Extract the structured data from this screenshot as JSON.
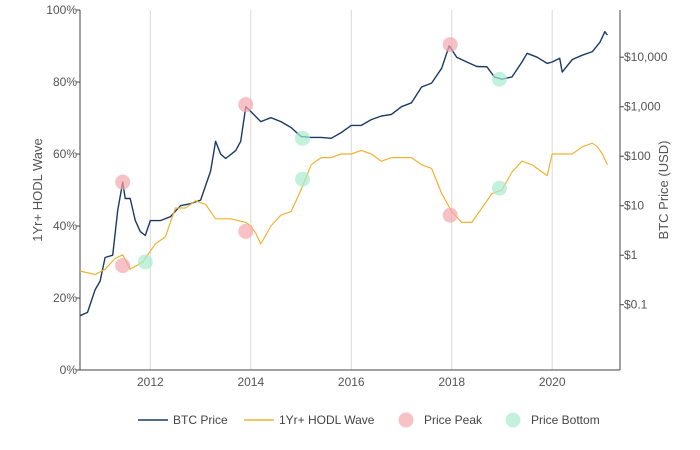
{
  "chart_data": {
    "type": "line",
    "x_axis": {
      "range": [
        2010.6,
        2021.35
      ],
      "ticks": [
        2012,
        2014,
        2016,
        2018,
        2020
      ],
      "grid": true
    },
    "y_left": {
      "label": "1Yr+ HODL Wave",
      "range": [
        0,
        100
      ],
      "ticks": [
        0,
        20,
        40,
        60,
        80,
        100
      ],
      "tick_labels": [
        "0%",
        "20%",
        "40%",
        "60%",
        "80%",
        "100%"
      ]
    },
    "y_right": {
      "label": "BTC Price (USD)",
      "scale": "log",
      "range": [
        0.0048,
        90000
      ],
      "ticks": [
        0.1,
        1,
        10,
        100,
        1000,
        10000
      ],
      "tick_labels": [
        "$0.1",
        "$1",
        "$10",
        "$100",
        "$1,000",
        "$10,000"
      ]
    },
    "series": [
      {
        "name": "BTC Price",
        "axis": "right",
        "color": "#1a3a66",
        "points": [
          [
            2010.6,
            0.06
          ],
          [
            2010.75,
            0.07
          ],
          [
            2010.9,
            0.2
          ],
          [
            2011.0,
            0.3
          ],
          [
            2011.1,
            0.9
          ],
          [
            2011.25,
            1.0
          ],
          [
            2011.35,
            8
          ],
          [
            2011.45,
            30
          ],
          [
            2011.5,
            14
          ],
          [
            2011.6,
            14
          ],
          [
            2011.7,
            5
          ],
          [
            2011.8,
            3
          ],
          [
            2011.9,
            2.5
          ],
          [
            2012.0,
            5
          ],
          [
            2012.2,
            5
          ],
          [
            2012.4,
            6
          ],
          [
            2012.6,
            10
          ],
          [
            2012.8,
            11
          ],
          [
            2013.0,
            13
          ],
          [
            2013.2,
            50
          ],
          [
            2013.3,
            200
          ],
          [
            2013.4,
            110
          ],
          [
            2013.5,
            90
          ],
          [
            2013.7,
            130
          ],
          [
            2013.8,
            200
          ],
          [
            2013.9,
            1000
          ],
          [
            2014.0,
            800
          ],
          [
            2014.2,
            500
          ],
          [
            2014.4,
            600
          ],
          [
            2014.6,
            500
          ],
          [
            2014.8,
            380
          ],
          [
            2015.0,
            250
          ],
          [
            2015.2,
            240
          ],
          [
            2015.4,
            240
          ],
          [
            2015.6,
            230
          ],
          [
            2015.8,
            300
          ],
          [
            2016.0,
            420
          ],
          [
            2016.2,
            420
          ],
          [
            2016.4,
            550
          ],
          [
            2016.6,
            650
          ],
          [
            2016.8,
            700
          ],
          [
            2017.0,
            1000
          ],
          [
            2017.2,
            1200
          ],
          [
            2017.4,
            2500
          ],
          [
            2017.6,
            3000
          ],
          [
            2017.8,
            6000
          ],
          [
            2017.95,
            17000
          ],
          [
            2018.1,
            10000
          ],
          [
            2018.3,
            8000
          ],
          [
            2018.5,
            6500
          ],
          [
            2018.7,
            6400
          ],
          [
            2018.85,
            4000
          ],
          [
            2019.0,
            3600
          ],
          [
            2019.2,
            4000
          ],
          [
            2019.4,
            8000
          ],
          [
            2019.5,
            12000
          ],
          [
            2019.7,
            10000
          ],
          [
            2019.9,
            7500
          ],
          [
            2020.0,
            8000
          ],
          [
            2020.15,
            9500
          ],
          [
            2020.2,
            5000
          ],
          [
            2020.4,
            9000
          ],
          [
            2020.6,
            11000
          ],
          [
            2020.8,
            13000
          ],
          [
            2020.95,
            20000
          ],
          [
            2021.05,
            33000
          ],
          [
            2021.1,
            28000
          ]
        ]
      },
      {
        "name": "1Yr+ HODL Wave",
        "axis": "left",
        "color": "#f0b232",
        "points": [
          [
            2010.6,
            27.5
          ],
          [
            2010.9,
            26.5
          ],
          [
            2011.1,
            28
          ],
          [
            2011.3,
            31
          ],
          [
            2011.45,
            32
          ],
          [
            2011.6,
            28
          ],
          [
            2011.85,
            30
          ],
          [
            2012.1,
            35
          ],
          [
            2012.3,
            37
          ],
          [
            2012.5,
            45
          ],
          [
            2012.7,
            45
          ],
          [
            2012.9,
            47
          ],
          [
            2013.1,
            46
          ],
          [
            2013.3,
            42
          ],
          [
            2013.6,
            42
          ],
          [
            2013.9,
            41
          ],
          [
            2014.0,
            40
          ],
          [
            2014.1,
            38
          ],
          [
            2014.2,
            35
          ],
          [
            2014.4,
            40
          ],
          [
            2014.6,
            43
          ],
          [
            2014.8,
            44
          ],
          [
            2015.0,
            50
          ],
          [
            2015.2,
            57
          ],
          [
            2015.4,
            59
          ],
          [
            2015.6,
            59
          ],
          [
            2015.8,
            60
          ],
          [
            2016.0,
            60
          ],
          [
            2016.2,
            61
          ],
          [
            2016.4,
            60
          ],
          [
            2016.6,
            58
          ],
          [
            2016.8,
            59
          ],
          [
            2017.0,
            59
          ],
          [
            2017.2,
            59
          ],
          [
            2017.4,
            57
          ],
          [
            2017.6,
            56
          ],
          [
            2017.8,
            49
          ],
          [
            2018.0,
            44
          ],
          [
            2018.2,
            41
          ],
          [
            2018.4,
            41
          ],
          [
            2018.6,
            45
          ],
          [
            2018.8,
            49
          ],
          [
            2019.0,
            50
          ],
          [
            2019.2,
            55
          ],
          [
            2019.4,
            58
          ],
          [
            2019.6,
            57
          ],
          [
            2019.8,
            55
          ],
          [
            2019.9,
            54
          ],
          [
            2020.0,
            60
          ],
          [
            2020.2,
            60
          ],
          [
            2020.4,
            60
          ],
          [
            2020.6,
            62
          ],
          [
            2020.8,
            63
          ],
          [
            2020.9,
            62
          ],
          [
            2021.0,
            60
          ],
          [
            2021.1,
            57
          ]
        ]
      },
      {
        "name": "Price Peak",
        "type": "scatter",
        "color": "#f4a6ac",
        "points": [
          {
            "x": 2011.45,
            "axis": "right",
            "y": 30
          },
          {
            "x": 2011.45,
            "axis": "left",
            "y": 29
          },
          {
            "x": 2013.9,
            "axis": "right",
            "y": 1100
          },
          {
            "x": 2013.9,
            "axis": "left",
            "y": 38.5
          },
          {
            "x": 2017.97,
            "axis": "right",
            "y": 18000
          },
          {
            "x": 2017.97,
            "axis": "left",
            "y": 43
          }
        ]
      },
      {
        "name": "Price Bottom",
        "type": "scatter",
        "color": "#a8ecd0",
        "points": [
          {
            "x": 2011.9,
            "axis": "left",
            "y": 30
          },
          {
            "x": 2015.03,
            "axis": "right",
            "y": 230
          },
          {
            "x": 2015.03,
            "axis": "left",
            "y": 53
          },
          {
            "x": 2018.95,
            "axis": "right",
            "y": 3600
          },
          {
            "x": 2018.95,
            "axis": "left",
            "y": 50.5
          }
        ]
      }
    ],
    "legend": {
      "position": "bottom",
      "items": [
        {
          "label": "BTC Price",
          "kind": "line",
          "color": "#1a3a66"
        },
        {
          "label": "1Yr+ HODL Wave",
          "kind": "line",
          "color": "#f0b232"
        },
        {
          "label": "Price Peak",
          "kind": "marker",
          "color": "#f4a6ac"
        },
        {
          "label": "Price Bottom",
          "kind": "marker",
          "color": "#a8ecd0"
        }
      ]
    }
  }
}
